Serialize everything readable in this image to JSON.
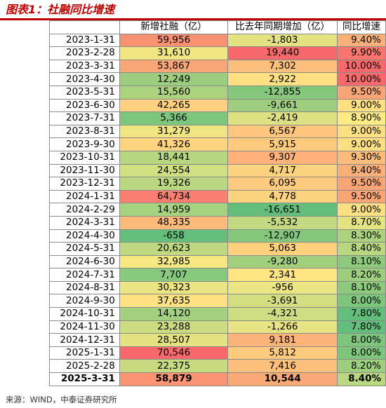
{
  "title": "图表1：社融同比增速",
  "source": "来源：WIND，中泰证券研究所",
  "table": {
    "headers": [
      "",
      "新增社融（亿）",
      "比去年同期增加（亿）",
      "同比增速"
    ],
    "rows": [
      {
        "date": "2023-1-31",
        "new": "59,956",
        "diff": "-1,803",
        "yoy": "9.40%"
      },
      {
        "date": "2023-2-28",
        "new": "31,610",
        "diff": "19,440",
        "yoy": "9.90%"
      },
      {
        "date": "2023-3-31",
        "new": "53,867",
        "diff": "7,302",
        "yoy": "10.00%"
      },
      {
        "date": "2023-4-30",
        "new": "12,249",
        "diff": "2,922",
        "yoy": "10.00%"
      },
      {
        "date": "2023-5-31",
        "new": "15,560",
        "diff": "-12,855",
        "yoy": "9.50%"
      },
      {
        "date": "2023-6-30",
        "new": "42,265",
        "diff": "-9,661",
        "yoy": "9.00%"
      },
      {
        "date": "2023-7-31",
        "new": "5,366",
        "diff": "-2,419",
        "yoy": "8.90%"
      },
      {
        "date": "2023-8-31",
        "new": "31,279",
        "diff": "6,567",
        "yoy": "9.00%"
      },
      {
        "date": "2023-9-30",
        "new": "41,326",
        "diff": "5,915",
        "yoy": "9.00%"
      },
      {
        "date": "2023-10-31",
        "new": "18,441",
        "diff": "9,307",
        "yoy": "9.30%"
      },
      {
        "date": "2023-11-30",
        "new": "24,554",
        "diff": "4,717",
        "yoy": "9.40%"
      },
      {
        "date": "2023-12-31",
        "new": "19,326",
        "diff": "6,095",
        "yoy": "9.50%"
      },
      {
        "date": "2024-1-31",
        "new": "64,734",
        "diff": "4,778",
        "yoy": "9.50%"
      },
      {
        "date": "2024-2-29",
        "new": "14,959",
        "diff": "-16,651",
        "yoy": "9.00%"
      },
      {
        "date": "2024-3-31",
        "new": "48,335",
        "diff": "-5,532",
        "yoy": "8.70%"
      },
      {
        "date": "2024-4-30",
        "new": "-658",
        "diff": "-12,907",
        "yoy": "8.30%"
      },
      {
        "date": "2024-5-31",
        "new": "20,623",
        "diff": "5,063",
        "yoy": "8.40%"
      },
      {
        "date": "2024-6-30",
        "new": "32,985",
        "diff": "-9,280",
        "yoy": "8.10%"
      },
      {
        "date": "2024-7-31",
        "new": "7,707",
        "diff": "2,341",
        "yoy": "8.20%"
      },
      {
        "date": "2024-8-31",
        "new": "30,323",
        "diff": "-956",
        "yoy": "8.10%"
      },
      {
        "date": "2024-9-30",
        "new": "37,635",
        "diff": "-3,691",
        "yoy": "8.00%"
      },
      {
        "date": "2024-10-31",
        "new": "14,120",
        "diff": "-4,321",
        "yoy": "7.80%"
      },
      {
        "date": "2024-11-30",
        "new": "23,288",
        "diff": "-1,266",
        "yoy": "7.80%"
      },
      {
        "date": "2024-12-31",
        "new": "28,507",
        "diff": "9,181",
        "yoy": "8.00%"
      },
      {
        "date": "2025-1-31",
        "new": "70,546",
        "diff": "5,812",
        "yoy": "8.00%"
      },
      {
        "date": "2025-2-28",
        "new": "22,375",
        "diff": "7,416",
        "yoy": "8.20%"
      },
      {
        "date": "2025-3-31",
        "new": "58,879",
        "diff": "10,544",
        "yoy": "8.40%"
      }
    ]
  },
  "heatmap_colors": {
    "low": "#63be7b",
    "mid": "#ffeb84",
    "high": "#f8696b"
  },
  "title_color": "#c00000"
}
